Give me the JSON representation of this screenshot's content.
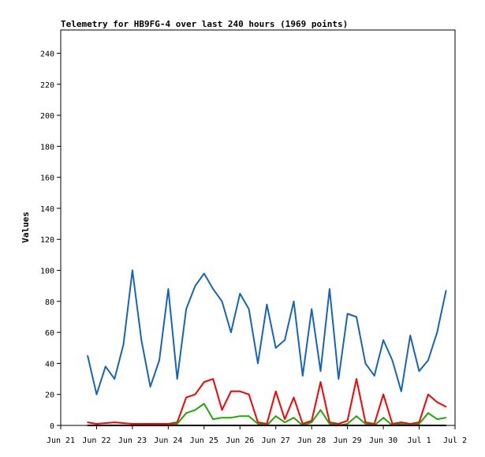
{
  "chart_data": {
    "type": "line",
    "title": "Telemetry for HB9FG-4 over last 240 hours (1969 points)",
    "xlabel": "",
    "ylabel": "Values",
    "ylim": [
      0,
      255
    ],
    "xlim": [
      "2023-06-21",
      "2023-07-02"
    ],
    "yticks": [
      0,
      20,
      40,
      60,
      80,
      100,
      120,
      140,
      160,
      180,
      200,
      220,
      240
    ],
    "xticks": [
      "Jun 21",
      "Jun 22",
      "Jun 23",
      "Jun 24",
      "Jun 25",
      "Jun 26",
      "Jun 27",
      "Jun 28",
      "Jun 29",
      "Jun 30",
      "Jul 1",
      "Jul 2"
    ],
    "grid": false,
    "legend": "none",
    "series": [
      {
        "color": "#1565c0",
        "x": [
          "2023-06-21T18:00",
          "2023-06-22T00:00",
          "2023-06-22T06:00",
          "2023-06-22T12:00",
          "2023-06-22T18:00",
          "2023-06-23T00:00",
          "2023-06-23T06:00",
          "2023-06-23T12:00",
          "2023-06-23T18:00",
          "2023-06-24T00:00",
          "2023-06-24T06:00",
          "2023-06-24T12:00",
          "2023-06-24T18:00",
          "2023-06-25T00:00",
          "2023-06-25T06:00",
          "2023-06-25T12:00",
          "2023-06-25T18:00",
          "2023-06-26T00:00",
          "2023-06-26T06:00",
          "2023-06-26T12:00",
          "2023-06-26T18:00",
          "2023-06-27T00:00",
          "2023-06-27T06:00",
          "2023-06-27T12:00",
          "2023-06-27T18:00",
          "2023-06-28T00:00",
          "2023-06-28T06:00",
          "2023-06-28T12:00",
          "2023-06-28T18:00",
          "2023-06-29T00:00",
          "2023-06-29T06:00",
          "2023-06-29T12:00",
          "2023-06-29T18:00",
          "2023-06-30T00:00",
          "2023-06-30T06:00",
          "2023-06-30T12:00",
          "2023-06-30T18:00",
          "2023-07-01T00:00",
          "2023-07-01T06:00",
          "2023-07-01T12:00",
          "2023-07-01T18:00"
        ],
        "values": [
          45,
          20,
          38,
          30,
          52,
          100,
          55,
          25,
          42,
          88,
          30,
          75,
          90,
          98,
          88,
          80,
          60,
          85,
          75,
          40,
          78,
          50,
          55,
          80,
          32,
          75,
          35,
          88,
          30,
          72,
          70,
          40,
          32,
          55,
          42,
          22,
          58,
          35,
          42,
          60,
          87
        ]
      },
      {
        "color": "#ff0000",
        "x": [
          "2023-06-21T18:00",
          "2023-06-22T00:00",
          "2023-06-22T12:00",
          "2023-06-23T00:00",
          "2023-06-23T12:00",
          "2023-06-24T00:00",
          "2023-06-24T06:00",
          "2023-06-24T12:00",
          "2023-06-24T18:00",
          "2023-06-25T00:00",
          "2023-06-25T06:00",
          "2023-06-25T12:00",
          "2023-06-25T18:00",
          "2023-06-26T00:00",
          "2023-06-26T06:00",
          "2023-06-26T12:00",
          "2023-06-26T18:00",
          "2023-06-27T00:00",
          "2023-06-27T06:00",
          "2023-06-27T12:00",
          "2023-06-27T18:00",
          "2023-06-28T00:00",
          "2023-06-28T06:00",
          "2023-06-28T12:00",
          "2023-06-28T18:00",
          "2023-06-29T00:00",
          "2023-06-29T06:00",
          "2023-06-29T12:00",
          "2023-06-29T18:00",
          "2023-06-30T00:00",
          "2023-06-30T06:00",
          "2023-06-30T12:00",
          "2023-06-30T18:00",
          "2023-07-01T00:00",
          "2023-07-01T06:00",
          "2023-07-01T12:00",
          "2023-07-01T18:00"
        ],
        "values": [
          2,
          1,
          2,
          1,
          1,
          1,
          2,
          18,
          20,
          28,
          30,
          10,
          22,
          22,
          20,
          2,
          1,
          22,
          4,
          18,
          1,
          3,
          28,
          2,
          1,
          3,
          30,
          2,
          1,
          20,
          1,
          2,
          1,
          2,
          20,
          15,
          12
        ]
      },
      {
        "color": "#1faa00",
        "x": [
          "2023-06-21T18:00",
          "2023-06-22T12:00",
          "2023-06-23T12:00",
          "2023-06-24T00:00",
          "2023-06-24T06:00",
          "2023-06-24T12:00",
          "2023-06-24T18:00",
          "2023-06-25T00:00",
          "2023-06-25T06:00",
          "2023-06-25T12:00",
          "2023-06-25T18:00",
          "2023-06-26T00:00",
          "2023-06-26T06:00",
          "2023-06-26T12:00",
          "2023-06-26T18:00",
          "2023-06-27T00:00",
          "2023-06-27T06:00",
          "2023-06-27T12:00",
          "2023-06-27T18:00",
          "2023-06-28T00:00",
          "2023-06-28T06:00",
          "2023-06-28T12:00",
          "2023-06-28T18:00",
          "2023-06-29T00:00",
          "2023-06-29T06:00",
          "2023-06-29T12:00",
          "2023-06-29T18:00",
          "2023-06-30T00:00",
          "2023-06-30T06:00",
          "2023-06-30T12:00",
          "2023-06-30T18:00",
          "2023-07-01T00:00",
          "2023-07-01T06:00",
          "2023-07-01T12:00",
          "2023-07-01T18:00"
        ],
        "values": [
          0,
          0,
          0,
          0,
          1,
          8,
          10,
          14,
          4,
          5,
          5,
          6,
          6,
          1,
          0,
          6,
          2,
          5,
          0,
          2,
          10,
          1,
          0,
          1,
          6,
          1,
          0,
          5,
          0,
          1,
          0,
          1,
          8,
          4,
          5
        ]
      },
      {
        "color": "#000000",
        "x": [
          "2023-06-21T18:00",
          "2023-07-01T18:00"
        ],
        "values": [
          0,
          0
        ]
      }
    ]
  }
}
